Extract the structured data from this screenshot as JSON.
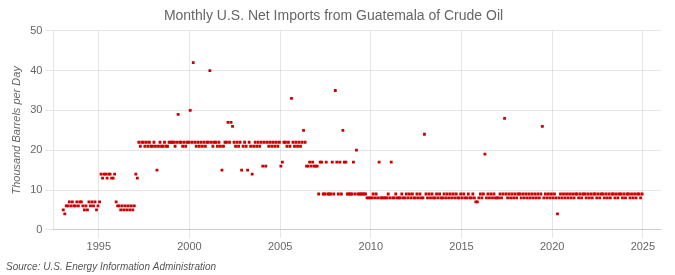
{
  "chart_data": {
    "type": "scatter",
    "title": "Monthly U.S. Net Imports from Guatemala of Crude Oil",
    "ylabel": "Thousand Barrels per Day",
    "source": "Source: U.S. Energy Information Administration",
    "color": "#CC0000",
    "marker": "square",
    "grid": true,
    "xlim": [
      1992.5,
      2026.0
    ],
    "xticks": [
      1995,
      2000,
      2005,
      2010,
      2015,
      2020,
      2025
    ],
    "ylim": [
      0,
      50
    ],
    "yticks": [
      0,
      10,
      20,
      30,
      40,
      50
    ],
    "x": [
      1993.0416666666667,
      1993.125,
      1993.2083333333333,
      1993.2916666666667,
      1993.375,
      1993.4583333333333,
      1993.5416666666667,
      1993.625,
      1993.7083333333333,
      1993.7916666666667,
      1993.875,
      1993.9583333333333,
      1994.0416666666667,
      1994.125,
      1994.2083333333333,
      1994.2916666666667,
      1994.375,
      1994.4583333333333,
      1994.5416666666667,
      1994.625,
      1994.7083333333333,
      1994.7916666666667,
      1994.875,
      1994.9583333333333,
      1995.0416666666667,
      1995.125,
      1995.2083333333333,
      1995.2916666666667,
      1995.375,
      1995.4583333333333,
      1995.5416666666667,
      1995.625,
      1995.7083333333333,
      1995.7916666666667,
      1995.875,
      1995.9583333333333,
      1996.0416666666667,
      1996.125,
      1996.2083333333333,
      1996.2916666666667,
      1996.375,
      1996.4583333333333,
      1996.5416666666667,
      1996.625,
      1996.7083333333333,
      1996.7916666666667,
      1996.875,
      1996.9583333333333,
      1997.0416666666667,
      1997.125,
      1997.2083333333333,
      1997.2916666666667,
      1997.375,
      1997.4583333333333,
      1997.5416666666667,
      1997.625,
      1997.7083333333333,
      1997.7916666666667,
      1997.875,
      1997.9583333333333,
      1998.0416666666667,
      1998.125,
      1998.2083333333333,
      1998.2916666666667,
      1998.375,
      1998.4583333333333,
      1998.5416666666667,
      1998.625,
      1998.7083333333333,
      1998.7916666666667,
      1998.875,
      1998.9583333333333,
      1999.0416666666667,
      1999.125,
      1999.2083333333333,
      1999.2916666666667,
      1999.375,
      1999.4583333333333,
      1999.5416666666667,
      1999.625,
      1999.7083333333333,
      1999.7916666666667,
      1999.875,
      1999.9583333333333,
      2000.0416666666667,
      2000.125,
      2000.2083333333333,
      2000.2916666666667,
      2000.375,
      2000.4583333333333,
      2000.5416666666667,
      2000.625,
      2000.7083333333333,
      2000.7916666666667,
      2000.875,
      2000.9583333333333,
      2001.0416666666667,
      2001.125,
      2001.2083333333333,
      2001.2916666666667,
      2001.375,
      2001.4583333333333,
      2001.5416666666667,
      2001.625,
      2001.7083333333333,
      2001.7916666666667,
      2001.875,
      2001.9583333333333,
      2002.0416666666667,
      2002.125,
      2002.2083333333333,
      2002.2916666666667,
      2002.375,
      2002.4583333333333,
      2002.5416666666667,
      2002.625,
      2002.7083333333333,
      2002.7916666666667,
      2002.875,
      2002.9583333333333,
      2003.0416666666667,
      2003.125,
      2003.2083333333333,
      2003.2916666666667,
      2003.375,
      2003.4583333333333,
      2003.5416666666667,
      2003.625,
      2003.7083333333333,
      2003.7916666666667,
      2003.875,
      2003.9583333333333,
      2004.0416666666667,
      2004.125,
      2004.2083333333333,
      2004.2916666666667,
      2004.375,
      2004.4583333333333,
      2004.5416666666667,
      2004.625,
      2004.7083333333333,
      2004.7916666666667,
      2004.875,
      2004.9583333333333,
      2005.0416666666667,
      2005.125,
      2005.2083333333333,
      2005.2916666666667,
      2005.375,
      2005.4583333333333,
      2005.5416666666667,
      2005.625,
      2005.7083333333333,
      2005.7916666666667,
      2005.875,
      2005.9583333333333,
      2006.0416666666667,
      2006.125,
      2006.2083333333333,
      2006.2916666666667,
      2006.375,
      2006.4583333333333,
      2006.5416666666667,
      2006.625,
      2006.7083333333333,
      2006.7916666666667,
      2006.875,
      2006.9583333333333,
      2007.0416666666667,
      2007.125,
      2007.2083333333333,
      2007.2916666666667,
      2007.375,
      2007.4583333333333,
      2007.5416666666667,
      2007.625,
      2007.7083333333333,
      2007.7916666666667,
      2007.875,
      2007.9583333333333,
      2008.0416666666667,
      2008.125,
      2008.2083333333333,
      2008.2916666666667,
      2008.375,
      2008.4583333333333,
      2008.5416666666667,
      2008.625,
      2008.7083333333333,
      2008.7916666666667,
      2008.875,
      2008.9583333333333,
      2009.0416666666667,
      2009.125,
      2009.2083333333333,
      2009.2916666666667,
      2009.375,
      2009.4583333333333,
      2009.5416666666667,
      2009.625,
      2009.7083333333333,
      2009.7916666666667,
      2009.875,
      2009.9583333333333,
      2010.0416666666667,
      2010.125,
      2010.2083333333333,
      2010.2916666666667,
      2010.375,
      2010.4583333333333,
      2010.5416666666667,
      2010.625,
      2010.7083333333333,
      2010.7916666666667,
      2010.875,
      2010.9583333333333,
      2011.0416666666667,
      2011.125,
      2011.2083333333333,
      2011.2916666666667,
      2011.375,
      2011.4583333333333,
      2011.5416666666667,
      2011.625,
      2011.7083333333333,
      2011.7916666666667,
      2011.875,
      2011.9583333333333,
      2012.0416666666667,
      2012.125,
      2012.2083333333333,
      2012.2916666666667,
      2012.375,
      2012.4583333333333,
      2012.5416666666667,
      2012.625,
      2012.7083333333333,
      2012.7916666666667,
      2012.875,
      2012.9583333333333,
      2013.0416666666667,
      2013.125,
      2013.2083333333333,
      2013.2916666666667,
      2013.375,
      2013.4583333333333,
      2013.5416666666667,
      2013.625,
      2013.7083333333333,
      2013.7916666666667,
      2013.875,
      2013.9583333333333,
      2014.0416666666667,
      2014.125,
      2014.2083333333333,
      2014.2916666666667,
      2014.375,
      2014.4583333333333,
      2014.5416666666667,
      2014.625,
      2014.7083333333333,
      2014.7916666666667,
      2014.875,
      2014.9583333333333,
      2015.0416666666667,
      2015.125,
      2015.2083333333333,
      2015.2916666666667,
      2015.375,
      2015.4583333333333,
      2015.5416666666667,
      2015.625,
      2015.7083333333333,
      2015.7916666666667,
      2015.875,
      2015.9583333333333,
      2016.0416666666667,
      2016.125,
      2016.2083333333333,
      2016.2916666666667,
      2016.375,
      2016.4583333333333,
      2016.5416666666667,
      2016.625,
      2016.7083333333333,
      2016.7916666666667,
      2016.875,
      2016.9583333333333,
      2017.0416666666667,
      2017.125,
      2017.2083333333333,
      2017.2916666666667,
      2017.375,
      2017.4583333333333,
      2017.5416666666667,
      2017.625,
      2017.7083333333333,
      2017.7916666666667,
      2017.875,
      2017.9583333333333,
      2018.0416666666667,
      2018.125,
      2018.2083333333333,
      2018.2916666666667,
      2018.375,
      2018.4583333333333,
      2018.5416666666667,
      2018.625,
      2018.7083333333333,
      2018.7916666666667,
      2018.875,
      2018.9583333333333,
      2019.0416666666667,
      2019.125,
      2019.2083333333333,
      2019.2916666666667,
      2019.375,
      2019.4583333333333,
      2019.5416666666667,
      2019.625,
      2019.7083333333333,
      2019.7916666666667,
      2019.875,
      2019.9583333333333,
      2020.0416666666667,
      2020.125,
      2020.2083333333333,
      2020.2916666666667,
      2020.375,
      2020.4583333333333,
      2020.5416666666667,
      2020.625,
      2020.7083333333333,
      2020.7916666666667,
      2020.875,
      2020.9583333333333,
      2021.0416666666667,
      2021.125,
      2021.2083333333333,
      2021.2916666666667,
      2021.375,
      2021.4583333333333,
      2021.5416666666667,
      2021.625,
      2021.7083333333333,
      2021.7916666666667,
      2021.875,
      2021.9583333333333,
      2022.0416666666667,
      2022.125,
      2022.2083333333333,
      2022.2916666666667,
      2022.375,
      2022.4583333333333,
      2022.5416666666667,
      2022.625,
      2022.7083333333333,
      2022.7916666666667,
      2022.875,
      2022.9583333333333,
      2023.0416666666667,
      2023.125,
      2023.2083333333333,
      2023.2916666666667,
      2023.375,
      2023.4583333333333,
      2023.5416666666667,
      2023.625,
      2023.7083333333333,
      2023.7916666666667,
      2023.875,
      2023.9583333333333,
      2024.0416666666667,
      2024.125,
      2024.2083333333333,
      2024.2916666666667,
      2024.375,
      2024.4583333333333,
      2024.5416666666667,
      2024.625,
      2024.7083333333333,
      2024.7916666666667,
      2024.875,
      2024.9583333333333
    ],
    "values": [
      5,
      4,
      6,
      6,
      7,
      6,
      7,
      6,
      6,
      7,
      6,
      7,
      7,
      6,
      5,
      6,
      5,
      7,
      6,
      7,
      6,
      7,
      5,
      6,
      7,
      14,
      13,
      14,
      14,
      13,
      14,
      14,
      13,
      13,
      14,
      7,
      6,
      6,
      5,
      6,
      5,
      6,
      5,
      6,
      5,
      6,
      5,
      6,
      14,
      13,
      22,
      21,
      22,
      22,
      21,
      22,
      21,
      22,
      21,
      21,
      22,
      21,
      15,
      21,
      22,
      21,
      21,
      22,
      21,
      21,
      22,
      22,
      22,
      22,
      21,
      22,
      29,
      22,
      22,
      21,
      22,
      21,
      22,
      22,
      30,
      22,
      42,
      22,
      21,
      22,
      21,
      22,
      21,
      22,
      21,
      22,
      22,
      40,
      22,
      21,
      22,
      22,
      21,
      22,
      21,
      15,
      21,
      22,
      22,
      27,
      22,
      27,
      26,
      22,
      21,
      22,
      21,
      22,
      15,
      21,
      22,
      21,
      15,
      22,
      21,
      14,
      21,
      22,
      21,
      22,
      21,
      22,
      16,
      22,
      16,
      22,
      21,
      22,
      21,
      22,
      21,
      22,
      21,
      22,
      16,
      17,
      22,
      22,
      21,
      22,
      21,
      33,
      22,
      21,
      22,
      21,
      22,
      21,
      22,
      25,
      22,
      16,
      16,
      17,
      16,
      17,
      16,
      16,
      16,
      9,
      17,
      17,
      9,
      9,
      17,
      9,
      9,
      9,
      17,
      9,
      35,
      17,
      9,
      17,
      9,
      25,
      17,
      17,
      9,
      9,
      9,
      9,
      17,
      9,
      20,
      9,
      9,
      9,
      9,
      9,
      9,
      8,
      8,
      8,
      8,
      9,
      8,
      9,
      8,
      17,
      8,
      8,
      8,
      8,
      8,
      9,
      8,
      17,
      8,
      8,
      9,
      8,
      8,
      8,
      9,
      8,
      8,
      9,
      8,
      9,
      8,
      9,
      8,
      8,
      9,
      8,
      9,
      8,
      8,
      24,
      9,
      8,
      9,
      8,
      9,
      8,
      8,
      9,
      8,
      9,
      8,
      8,
      9,
      8,
      9,
      8,
      9,
      8,
      9,
      8,
      9,
      8,
      8,
      9,
      8,
      9,
      8,
      8,
      9,
      8,
      8,
      9,
      8,
      7,
      7,
      8,
      9,
      8,
      9,
      19,
      8,
      9,
      8,
      9,
      8,
      9,
      8,
      8,
      8,
      9,
      8,
      9,
      28,
      9,
      8,
      9,
      8,
      9,
      8,
      9,
      8,
      9,
      9,
      8,
      9,
      8,
      9,
      8,
      9,
      8,
      9,
      8,
      9,
      8,
      9,
      8,
      9,
      26,
      8,
      9,
      8,
      9,
      8,
      9,
      8,
      9,
      8,
      4,
      8,
      9,
      8,
      9,
      8,
      9,
      8,
      9,
      8,
      9,
      8,
      9,
      9,
      8,
      9,
      8,
      9,
      9,
      8,
      9,
      8,
      9,
      8,
      9,
      9,
      8,
      9,
      8,
      9,
      9,
      8,
      9,
      8,
      9,
      8,
      9,
      9,
      8,
      9,
      8,
      9,
      9,
      8,
      9,
      8,
      9,
      9,
      8,
      9,
      8,
      9,
      8,
      9,
      9,
      8,
      9
    ]
  }
}
